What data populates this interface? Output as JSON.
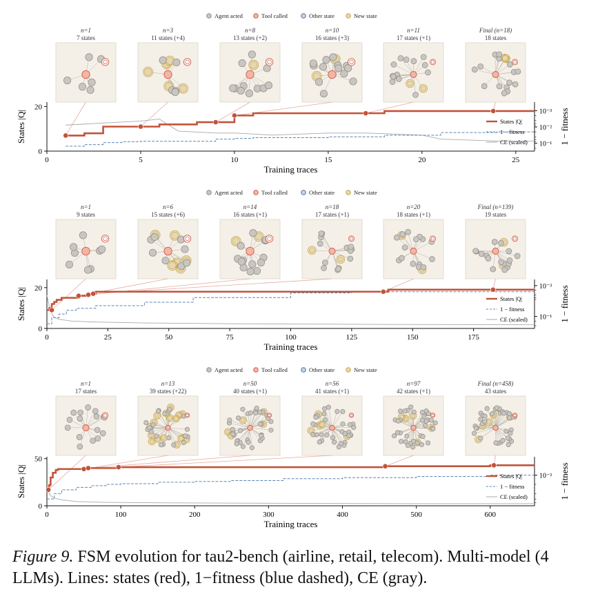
{
  "legend": {
    "agent_acted": "Agent acted",
    "tool_called": "Tool called",
    "other_state": "Other state",
    "new_state": "New state"
  },
  "line_legend": {
    "states": "States |Q|",
    "fitness": "1 − fitness",
    "ce": "CE (scaled)"
  },
  "colors": {
    "states": "#c0533a",
    "fitness": "#5d86b5",
    "ce": "#a8a8a8",
    "agent_fill": "#c9c5c0",
    "agent_stroke": "#8f8a84",
    "tool_fill": "#f4b5a7",
    "tool_stroke": "#d05a45",
    "other_fill": "#c9d4e4",
    "other_stroke": "#4f74ab",
    "new_fill": "#e6d7b0",
    "new_stroke": "#c9a74e",
    "snapshot_bg": "#f4f0e8",
    "snapshot_border": "#ddd6c9"
  },
  "caption": {
    "label": "Figure 9.",
    "text": "FSM evolution for tau2-bench (airline, retail, telecom). Multi-model (4 LLMs). Lines: states (red), 1−fitness (blue dashed), CE (gray)."
  },
  "chart_data": [
    {
      "type": "line",
      "xlabel": "Training traces",
      "ylabel": "States |Q|",
      "y2label": "1 − fitness",
      "xlim": [
        0,
        26
      ],
      "ylim": [
        0,
        22
      ],
      "xticks": [
        "0",
        "5",
        "10",
        "15",
        "20",
        "25"
      ],
      "xtick_values": [
        0,
        5,
        10,
        15,
        20,
        25
      ],
      "yticks": [
        "0",
        "20"
      ],
      "ytick_values": [
        0,
        20
      ],
      "y2_scale": "log",
      "y2lim": [
        0.3,
        0.0003
      ],
      "y2ticks": [
        "10⁻³",
        "10⁻²",
        "10⁻¹"
      ],
      "y2tick_values": [
        0.001,
        0.01,
        0.1
      ],
      "series": [
        {
          "name": "States |Q|",
          "x": [
            1,
            2,
            3,
            4,
            5,
            6,
            7,
            8,
            9,
            10,
            11,
            12,
            13,
            14,
            15,
            16,
            17,
            18,
            19,
            20,
            21,
            22,
            23,
            24,
            25,
            26
          ],
          "y": [
            7,
            8,
            11,
            11,
            11,
            12,
            12,
            13,
            13,
            16,
            17,
            17,
            17,
            17,
            17,
            17,
            17,
            18,
            18,
            18,
            18,
            18,
            18,
            18,
            18,
            18
          ]
        },
        {
          "name": "1 − fitness",
          "x": [
            1,
            2,
            3,
            4,
            5,
            8,
            9,
            10,
            11,
            14,
            15,
            17,
            18,
            20,
            21,
            24,
            26
          ],
          "y": [
            0.15,
            0.12,
            0.09,
            0.08,
            0.075,
            0.075,
            0.055,
            0.05,
            0.045,
            0.045,
            0.04,
            0.04,
            0.032,
            0.032,
            0.022,
            0.02,
            0.018
          ]
        },
        {
          "name": "CE (scaled)",
          "x": [
            1,
            3,
            5,
            6,
            7,
            9,
            10,
            12,
            15,
            17,
            20,
            21,
            24,
            26
          ],
          "y": [
            13,
            14,
            15,
            16,
            10,
            9,
            9,
            8,
            9,
            9,
            8,
            6,
            5,
            5
          ]
        }
      ],
      "snapshots": [
        {
          "n": "n=1",
          "states": "7 states",
          "x": 1,
          "y": 7
        },
        {
          "n": "n=3",
          "states": "11 states (+4)",
          "x": 5,
          "y": 11
        },
        {
          "n": "n=8",
          "states": "13 states (+2)",
          "x": 9,
          "y": 13
        },
        {
          "n": "n=10",
          "states": "16 states (+3)",
          "x": 10,
          "y": 16
        },
        {
          "n": "n=11",
          "states": "17 states (+1)",
          "x": 17,
          "y": 17
        },
        {
          "n": "Final (n=18)",
          "states": "18 states",
          "x": 23.8,
          "y": 18
        }
      ]
    },
    {
      "type": "line",
      "xlabel": "Training traces",
      "ylabel": "States |Q|",
      "y2label": "1 − fitness",
      "xlim": [
        0,
        200
      ],
      "ylim": [
        0,
        24
      ],
      "xticks": [
        "0",
        "25",
        "50",
        "75",
        "100",
        "125",
        "150",
        "175"
      ],
      "xtick_values": [
        0,
        25,
        50,
        75,
        100,
        125,
        150,
        175
      ],
      "yticks": [
        "0",
        "20"
      ],
      "ytick_values": [
        0,
        20
      ],
      "y2_scale": "log",
      "y2lim": [
        0.6,
        0.0004
      ],
      "y2ticks": [
        "10⁻³",
        "10⁻¹"
      ],
      "y2tick_values": [
        0.001,
        0.1
      ],
      "series": [
        {
          "name": "States |Q|",
          "x": [
            0,
            1,
            2,
            3,
            4,
            5,
            6,
            8,
            10,
            13,
            15,
            17,
            18,
            19,
            20,
            60,
            138,
            140,
            183,
            200
          ],
          "y": [
            9,
            10,
            12,
            13,
            14,
            14,
            15,
            15,
            15,
            16,
            16,
            17,
            17,
            17,
            18,
            18,
            18,
            19,
            19,
            19
          ]
        },
        {
          "name": "1 − fitness",
          "x": [
            0,
            2,
            5,
            8,
            12,
            20,
            40,
            60,
            100,
            125,
            200
          ],
          "y": [
            0.3,
            0.12,
            0.07,
            0.04,
            0.03,
            0.02,
            0.012,
            0.006,
            0.003,
            0.0025,
            0.0015
          ]
        },
        {
          "name": "CE (scaled)",
          "x": [
            0,
            1,
            2,
            3,
            5,
            10,
            20,
            40,
            80,
            140,
            200
          ],
          "y": [
            18,
            12,
            8,
            6,
            5,
            4,
            3.5,
            3,
            2.5,
            2.2,
            2
          ]
        }
      ],
      "snapshots": [
        {
          "n": "n=1",
          "states": "9 states",
          "x": 2,
          "y": 9
        },
        {
          "n": "n=6",
          "states": "15 states (+6)",
          "x": 13,
          "y": 16
        },
        {
          "n": "n=14",
          "states": "16 states (+1)",
          "x": 17,
          "y": 16.5
        },
        {
          "n": "n=18",
          "states": "17 states (+1)",
          "x": 19,
          "y": 17
        },
        {
          "n": "n=20",
          "states": "18 states (+1)",
          "x": 138,
          "y": 18
        },
        {
          "n": "Final (n=139)",
          "states": "19 states",
          "x": 183,
          "y": 19
        }
      ]
    },
    {
      "type": "line",
      "xlabel": "Training traces",
      "ylabel": "States |Q|",
      "y2label": "1 − fitness",
      "xlim": [
        0,
        660
      ],
      "ylim": [
        0,
        52
      ],
      "xticks": [
        "0",
        "100",
        "200",
        "300",
        "400",
        "500",
        "600"
      ],
      "xtick_values": [
        0,
        100,
        200,
        300,
        400,
        500,
        600
      ],
      "yticks": [
        "0",
        "50"
      ],
      "ytick_values": [
        0,
        50
      ],
      "y2_scale": "log",
      "y2lim": [
        0.1,
        0.0025
      ],
      "y2ticks": [
        "10⁻²"
      ],
      "y2tick_values": [
        0.01
      ],
      "series": [
        {
          "name": "States |Q|",
          "x": [
            0,
            3,
            5,
            8,
            12,
            15,
            50,
            55,
            60,
            95,
            100,
            455,
            460,
            600,
            660
          ],
          "y": [
            17,
            22,
            30,
            35,
            38,
            39,
            39,
            40,
            40,
            41,
            41,
            41,
            42,
            43,
            43
          ]
        },
        {
          "name": "1 − fitness",
          "x": [
            0,
            10,
            20,
            40,
            60,
            80,
            100,
            150,
            200,
            250,
            320,
            400,
            500,
            600,
            660
          ],
          "y": [
            0.06,
            0.04,
            0.03,
            0.025,
            0.022,
            0.02,
            0.019,
            0.017,
            0.016,
            0.015,
            0.013,
            0.012,
            0.011,
            0.01,
            0.01
          ]
        },
        {
          "name": "CE (scaled)",
          "x": [
            0,
            5,
            10,
            20,
            40,
            80,
            150,
            300,
            500,
            660
          ],
          "y": [
            20,
            12,
            9,
            7,
            5,
            4,
            3.5,
            3,
            2.5,
            2.5
          ]
        }
      ],
      "snapshots": [
        {
          "n": "n=1",
          "states": "17 states",
          "x": 2,
          "y": 17
        },
        {
          "n": "n=13",
          "states": "39 states (+22)",
          "x": 50,
          "y": 39
        },
        {
          "n": "n=50",
          "states": "40 states (+1)",
          "x": 56,
          "y": 40
        },
        {
          "n": "n=56",
          "states": "41 states (+1)",
          "x": 97,
          "y": 41
        },
        {
          "n": "n=97",
          "states": "42 states (+1)",
          "x": 458,
          "y": 42
        },
        {
          "n": "Final (n=458)",
          "states": "43 states",
          "x": 605,
          "y": 43
        }
      ]
    }
  ]
}
